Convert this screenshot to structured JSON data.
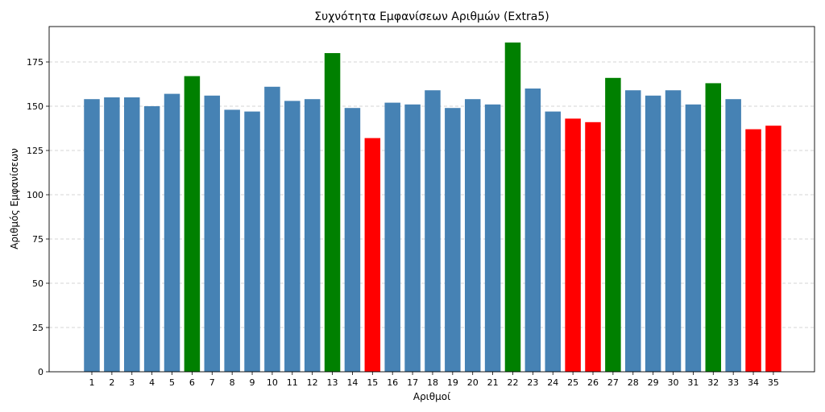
{
  "chart_data": {
    "type": "bar",
    "title": "Συχνότητα Εμφανίσεων Αριθμών (Extra5)",
    "xlabel": "Αριθμοί",
    "ylabel": "Αριθμός Εμφανίσεων",
    "categories": [
      "1",
      "2",
      "3",
      "4",
      "5",
      "6",
      "7",
      "8",
      "9",
      "10",
      "11",
      "12",
      "13",
      "14",
      "15",
      "16",
      "17",
      "18",
      "19",
      "20",
      "21",
      "22",
      "23",
      "24",
      "25",
      "26",
      "27",
      "28",
      "29",
      "30",
      "31",
      "32",
      "33",
      "34",
      "35"
    ],
    "values": [
      154,
      155,
      155,
      150,
      157,
      167,
      156,
      148,
      147,
      161,
      153,
      154,
      180,
      149,
      132,
      152,
      151,
      159,
      149,
      154,
      151,
      186,
      160,
      147,
      143,
      141,
      166,
      159,
      156,
      159,
      151,
      163,
      154,
      137,
      139
    ],
    "bar_status": [
      "normal",
      "normal",
      "normal",
      "normal",
      "normal",
      "high",
      "normal",
      "normal",
      "normal",
      "normal",
      "normal",
      "normal",
      "high",
      "normal",
      "low",
      "normal",
      "normal",
      "normal",
      "normal",
      "normal",
      "normal",
      "high",
      "normal",
      "normal",
      "low",
      "low",
      "high",
      "normal",
      "normal",
      "normal",
      "normal",
      "high",
      "normal",
      "low",
      "low"
    ],
    "colors": {
      "normal": "#4682b4",
      "high": "#008000",
      "low": "#ff0000"
    },
    "ylim": [
      0,
      195
    ],
    "yticks": [
      0,
      25,
      50,
      75,
      100,
      125,
      150,
      175
    ],
    "grid": "y-dashed",
    "legend": "none"
  }
}
